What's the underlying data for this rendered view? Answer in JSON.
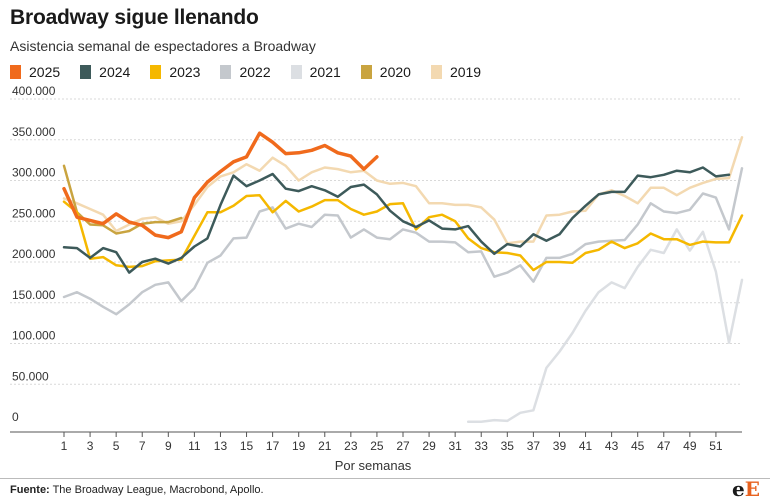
{
  "chart_data": {
    "type": "line",
    "title": "Broadway sigue llenando",
    "subtitle": "Asistencia semanal de espectadores a Broadway",
    "xlabel": "Por semanas",
    "ylabel": "",
    "xlim": [
      1,
      53
    ],
    "ylim": [
      0,
      400000
    ],
    "x_ticks": [
      1,
      3,
      5,
      7,
      9,
      11,
      13,
      15,
      17,
      19,
      21,
      23,
      25,
      27,
      29,
      31,
      33,
      35,
      37,
      39,
      41,
      43,
      45,
      47,
      49,
      51
    ],
    "y_ticks": [
      0,
      50000,
      100000,
      150000,
      200000,
      250000,
      300000,
      350000,
      400000
    ],
    "y_tick_labels": [
      "0",
      "50.000",
      "100.000",
      "150.000",
      "200.000",
      "250.000",
      "300.000",
      "350.000",
      "400.000"
    ],
    "grid": "horizontal",
    "legend": "top",
    "source_label": "Fuente:",
    "source_text": " The Broadway League, Macrobond, Apollo.",
    "logo": {
      "a": "e",
      "b": "E"
    },
    "series": [
      {
        "name": "2019",
        "color": "#f3d9b1",
        "width": 2.5,
        "values": [
          278000,
          272000,
          265000,
          258000,
          238000,
          246000,
          253000,
          255000,
          247000,
          250000,
          270000,
          292000,
          305000,
          310000,
          320000,
          312000,
          328000,
          318000,
          300000,
          310000,
          316000,
          314000,
          310000,
          312000,
          300000,
          296000,
          297000,
          293000,
          272000,
          272000,
          270000,
          270000,
          267000,
          252000,
          223000,
          225000,
          225000,
          257000,
          258000,
          262000,
          263000,
          283000,
          288000,
          281000,
          272000,
          291000,
          291000,
          282000,
          291000,
          297000,
          302000,
          303000,
          353000
        ]
      },
      {
        "name": "2020",
        "color": "#c9a440",
        "width": 2.5,
        "values": [
          318000,
          261000,
          246000,
          245000,
          235000,
          238000,
          247000,
          249000,
          249000,
          254000
        ]
      },
      {
        "name": "2021",
        "color": "#dcdfe3",
        "width": 2.5,
        "values": [
          null,
          null,
          null,
          null,
          null,
          null,
          null,
          null,
          null,
          null,
          null,
          null,
          null,
          null,
          null,
          null,
          null,
          null,
          null,
          null,
          null,
          null,
          null,
          null,
          null,
          null,
          null,
          null,
          null,
          null,
          null,
          4000,
          4000,
          6000,
          5000,
          15000,
          18000,
          70000,
          90000,
          113000,
          140000,
          163000,
          175000,
          168000,
          194000,
          215000,
          211000,
          240000,
          214000,
          237000,
          188000,
          101000,
          178000
        ]
      },
      {
        "name": "2022",
        "color": "#c4c8cd",
        "width": 2.5,
        "values": [
          157000,
          163000,
          155000,
          145000,
          136000,
          148000,
          163000,
          172000,
          175000,
          152000,
          168000,
          199000,
          208000,
          229000,
          230000,
          262000,
          267000,
          241000,
          247000,
          243000,
          258000,
          257000,
          230000,
          240000,
          230000,
          228000,
          240000,
          236000,
          225000,
          225000,
          224000,
          212000,
          213000,
          182000,
          187000,
          196000,
          176000,
          205000,
          205000,
          210000,
          222000,
          225000,
          226000,
          227000,
          246000,
          272000,
          262000,
          260000,
          264000,
          284000,
          279000,
          240000,
          315000
        ]
      },
      {
        "name": "2023",
        "color": "#f5b800",
        "width": 2.5,
        "values": [
          274000,
          261000,
          204000,
          206000,
          196000,
          194000,
          195000,
          201000,
          202000,
          203000,
          232000,
          261000,
          261000,
          269000,
          281000,
          282000,
          261000,
          275000,
          262000,
          268000,
          276000,
          276000,
          265000,
          258000,
          262000,
          271000,
          272000,
          240000,
          255000,
          258000,
          250000,
          229000,
          217000,
          212000,
          211000,
          208000,
          190000,
          200000,
          200000,
          199000,
          211000,
          215000,
          225000,
          217000,
          223000,
          235000,
          228000,
          228000,
          221000,
          225000,
          224000,
          224000,
          257000
        ]
      },
      {
        "name": "2024",
        "color": "#3d5a5a",
        "width": 2.5,
        "values": [
          218000,
          217000,
          205000,
          217000,
          212000,
          187000,
          200000,
          204000,
          198000,
          205000,
          219000,
          229000,
          270000,
          306000,
          293000,
          300000,
          308000,
          290000,
          287000,
          293000,
          288000,
          280000,
          292000,
          295000,
          283000,
          263000,
          250000,
          243000,
          251000,
          241000,
          240000,
          244000,
          225000,
          210000,
          222000,
          219000,
          234000,
          226000,
          234000,
          254000,
          269000,
          283000,
          286000,
          286000,
          306000,
          304000,
          307000,
          312000,
          310000,
          316000,
          305000,
          307000
        ]
      },
      {
        "name": "2025",
        "color": "#f06a1c",
        "width": 3.5,
        "values": [
          290000,
          255000,
          251000,
          247000,
          259000,
          249000,
          245000,
          233000,
          230000,
          237000,
          279000,
          298000,
          311000,
          323000,
          329000,
          358000,
          347000,
          333000,
          334000,
          337000,
          343000,
          334000,
          330000,
          314000,
          329000
        ]
      }
    ]
  }
}
